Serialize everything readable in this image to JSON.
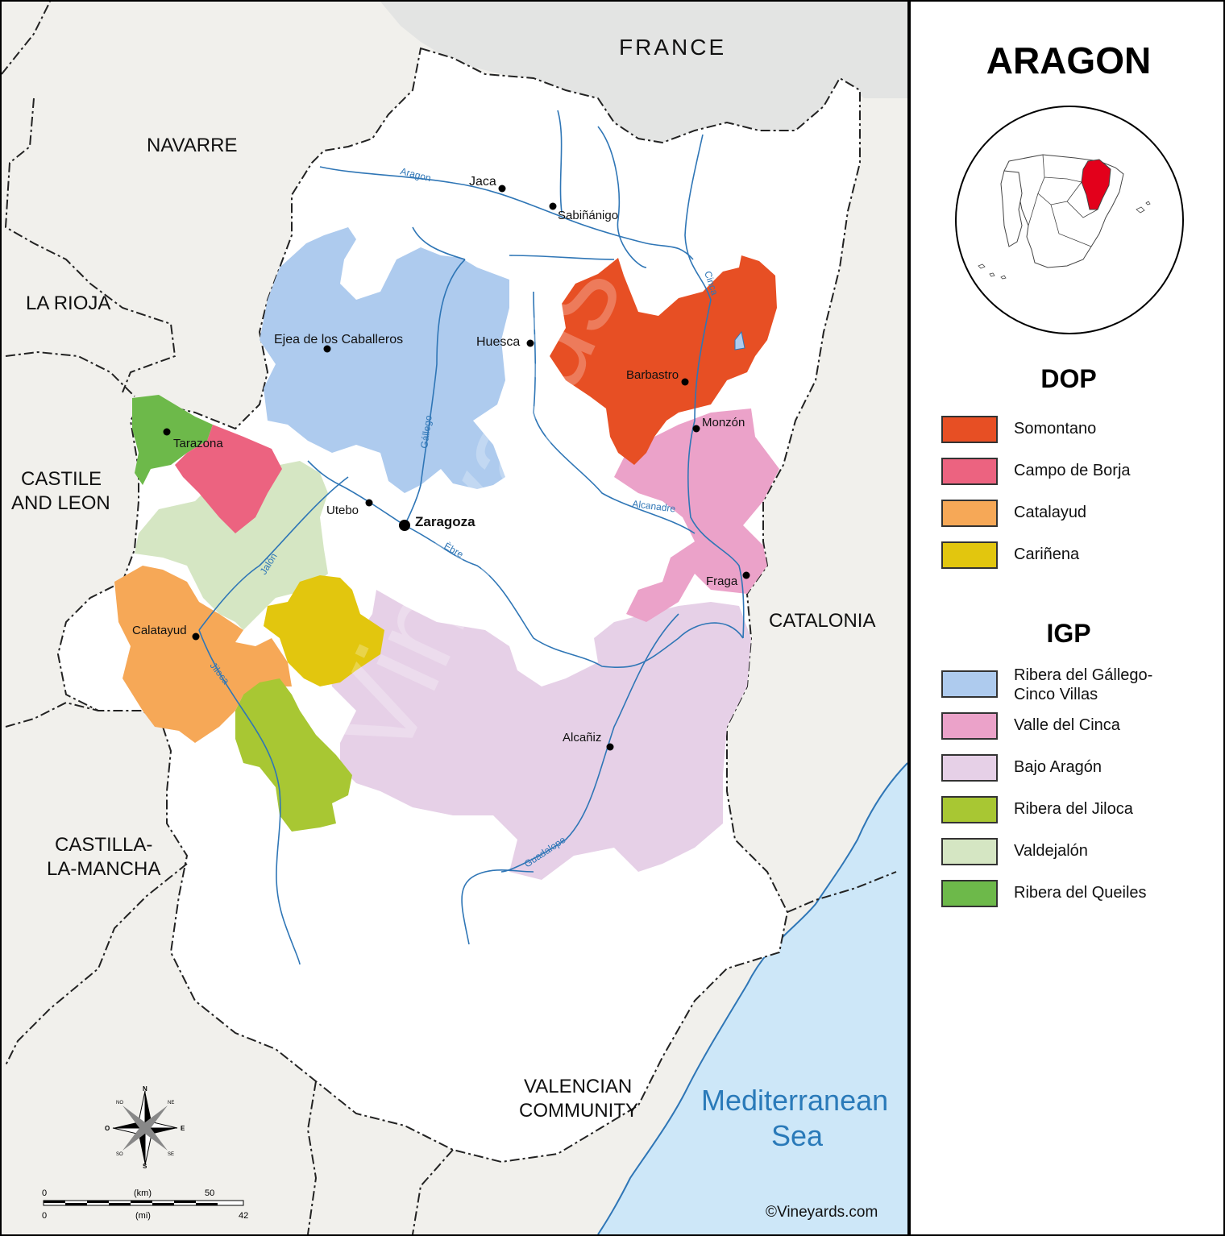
{
  "title": "ARAGON",
  "dop_heading": "DOP",
  "igp_heading": "IGP",
  "dop_legend": [
    {
      "label": "Somontano",
      "color": "#e74f24"
    },
    {
      "label": "Campo de Borja",
      "color": "#ec6380"
    },
    {
      "label": "Catalayud",
      "color": "#f6a857"
    },
    {
      "label": "Cariñena",
      "color": "#e2c60e"
    }
  ],
  "igp_legend": [
    {
      "label_line1": "Ribera del Gállego-",
      "label_line2": "Cinco Villas",
      "color": "#aecbee"
    },
    {
      "label_line1": "Valle del Cinca",
      "label_line2": "",
      "color": "#eba2c9"
    },
    {
      "label_line1": "Bajo Aragón",
      "label_line2": "",
      "color": "#e6d0e7"
    },
    {
      "label_line1": "Ribera del Jiloca",
      "label_line2": "",
      "color": "#a8c733"
    },
    {
      "label_line1": "Valdejalón",
      "label_line2": "",
      "color": "#d5e6c3"
    },
    {
      "label_line1": "Ribera del Queiles",
      "label_line2": "",
      "color": "#6db94a"
    }
  ],
  "regions": {
    "france": "FRANCE",
    "navarre": "NAVARRE",
    "la_rioja": "LA RIOJA",
    "castile_1": "CASTILE",
    "castile_2": "AND LEON",
    "castilla_1": "CASTILLA-",
    "castilla_2": "LA-MANCHA",
    "valencian_1": "VALENCIAN",
    "valencian_2": "COMMUNITY",
    "catalonia": "CATALONIA",
    "sea_1": "Mediterranean",
    "sea_2": "Sea"
  },
  "cities": {
    "jaca": "Jaca",
    "sabinanigo": "Sabiñánigo",
    "ejea": "Ejea de los Caballeros",
    "huesca": "Huesca",
    "barbastro": "Barbastro",
    "monzon": "Monzón",
    "tarazona": "Tarazona",
    "utebo": "Utebo",
    "zaragoza": "Zaragoza",
    "fraga": "Fraga",
    "calatayud": "Calatayud",
    "alcaniz": "Alcañiz"
  },
  "rivers": {
    "aragon": "Aragon",
    "cinca": "Cinca",
    "gallego": "Gállego",
    "alcanadre": "Alcanadre",
    "ebre": "Èbre",
    "jalon": "Jalón",
    "jiloca": "Jiloca",
    "guadalope": "Guadalope"
  },
  "compass": {
    "n": "N",
    "s": "S",
    "e": "E",
    "o": "O",
    "ne": "NE",
    "no": "NO",
    "se": "SE",
    "so": "SO"
  },
  "scale": {
    "km_zero": "0",
    "km_unit": "(km)",
    "km_max": "50",
    "mi_zero": "0",
    "mi_unit": "(mi)",
    "mi_max": "42"
  },
  "credit": "©Vineyards.com",
  "colors": {
    "outside": "#f1f0ec",
    "france": "#e3e4e3",
    "sea": "#cde7f8",
    "aragon": "#ffffff",
    "river": "#2f76b6",
    "inset_highlight": "#e3001b"
  }
}
